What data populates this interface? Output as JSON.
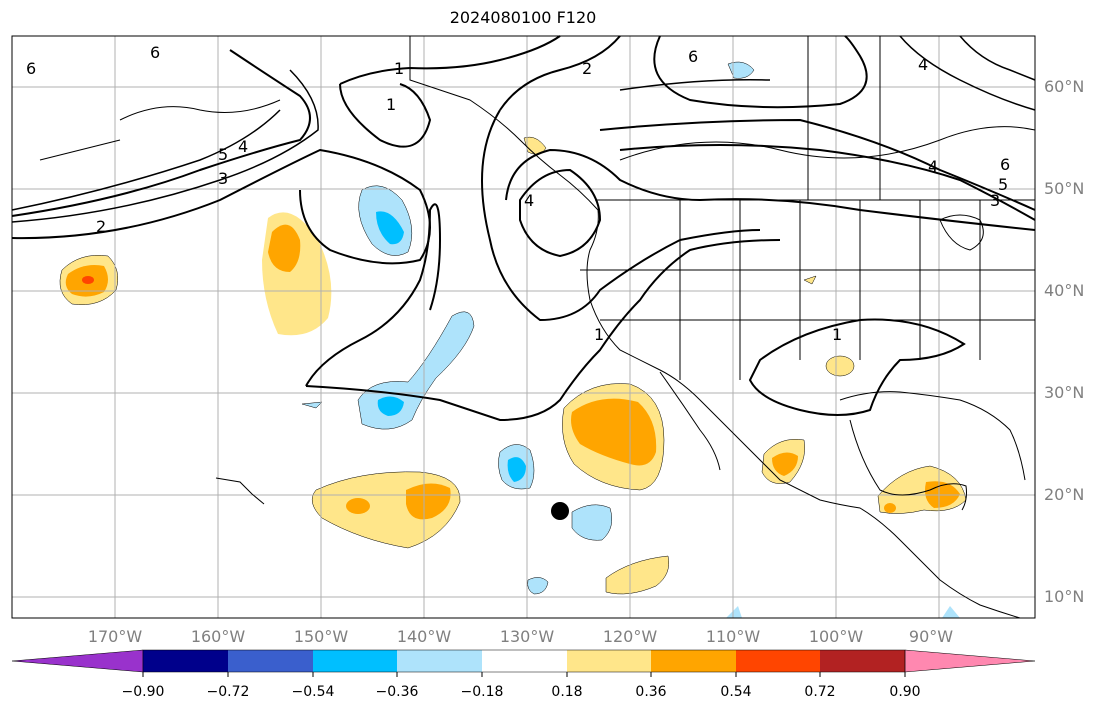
{
  "title": "2024080100 F120",
  "lat_labels": [
    "60°N",
    "50°N",
    "40°N",
    "30°N",
    "20°N",
    "10°N"
  ],
  "lon_labels": [
    "170°W",
    "160°W",
    "150°W",
    "140°W",
    "130°W",
    "120°W",
    "110°W",
    "100°W",
    "90°W"
  ],
  "contour_labels": [
    "6",
    "6",
    "1",
    "1",
    "2",
    "6",
    "4",
    "5",
    "4",
    "3",
    "2",
    "4",
    "1",
    "1",
    "4",
    "5",
    "3",
    "6"
  ],
  "colorbar": {
    "tick_labels": [
      "−0.90",
      "−0.72",
      "−0.54",
      "−0.36",
      "−0.18",
      "0.18",
      "0.36",
      "0.54",
      "0.72",
      "0.90"
    ],
    "colors": [
      "#9932cc",
      "#00008b",
      "#3a5fcd",
      "#00bfff",
      "#aee3fb",
      "#ffffff",
      "#ffe68a",
      "#ffa500",
      "#ff4500",
      "#b22222",
      "#ff88b0"
    ]
  },
  "colors": {
    "light_blue": "#aee3fb",
    "deep_sky_blue": "#00bfff",
    "light_yellow": "#ffe68a",
    "orange": "#ffa500",
    "orange_red": "#ff4500",
    "grid": "#b0b0b0",
    "label_gray": "#808080"
  }
}
